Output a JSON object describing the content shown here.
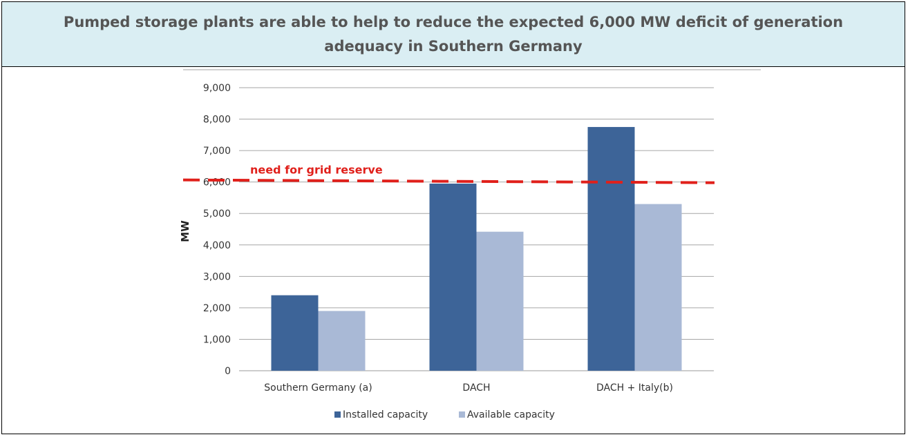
{
  "header": {
    "title": "Pumped storage plants are able to help to reduce the expected 6,000 MW deficit of generation adequacy in Southern Germany",
    "background_color": "#DAEEF3"
  },
  "chart_data": {
    "type": "bar",
    "categories": [
      "Southern Germany (a)",
      "DACH",
      "DACH + Italy(b)"
    ],
    "series": [
      {
        "name": "Installed capacity",
        "values": [
          2400,
          5950,
          7750
        ],
        "color": "#3D6498"
      },
      {
        "name": "Available capacity",
        "values": [
          1900,
          4420,
          5300
        ],
        "color": "#A9B9D6"
      }
    ],
    "ylabel": "MW",
    "ylim": [
      0,
      9000
    ],
    "yticks": [
      0,
      1000,
      2000,
      3000,
      4000,
      5000,
      6000,
      7000,
      8000,
      9000
    ],
    "ytick_labels": [
      "0",
      "1,000",
      "2,000",
      "3,000",
      "4,000",
      "5,000",
      "6,000",
      "7,000",
      "8,000",
      "9,000"
    ],
    "grid": true,
    "legend": "bottom",
    "reference_line": {
      "value": 6000,
      "label": "need for grid reserve",
      "color": "#E0201B",
      "style": "dashed"
    }
  }
}
